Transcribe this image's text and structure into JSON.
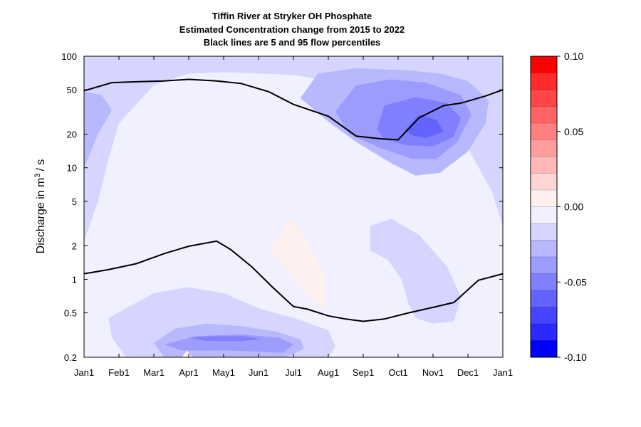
{
  "chart_data": {
    "type": "contour",
    "title_lines": [
      "Tiffin River at Stryker OH  Phosphate",
      "Estimated Concentration change from 2015 to 2022",
      "Black lines are 5 and 95 flow percentiles"
    ],
    "ylabel": "Discharge in m",
    "ylabel_sup": "3",
    "ylabel_suffix": "/ s",
    "y_scale": "log",
    "ylim": [
      0.2,
      100
    ],
    "y_ticks": [
      100,
      50,
      20,
      10,
      5,
      2,
      1,
      0.5,
      0.2
    ],
    "y_tick_labels": [
      "100",
      "50",
      "20",
      "10",
      "5",
      "2",
      "1",
      "0.5",
      "0.2"
    ],
    "x_ticks": [
      0,
      1,
      2,
      3,
      4,
      5,
      6,
      7,
      8,
      9,
      10,
      11,
      12
    ],
    "x_tick_labels": [
      "Jan1",
      "Feb1",
      "Mar1",
      "Apr1",
      "May1",
      "Jun1",
      "Jul1",
      "Aug1",
      "Sep1",
      "Oct1",
      "Nov1",
      "Dec1",
      "Jan1"
    ],
    "colorbar": {
      "range": [
        -0.1,
        0.1
      ],
      "ticks": [
        0.1,
        0.05,
        0.0,
        -0.05,
        -0.1
      ],
      "tick_labels": [
        "0.10",
        "0.05",
        "0.00",
        "-0.05",
        "-0.10"
      ],
      "colors_top_to_bottom": [
        "#ff0000",
        "#ff2a2a",
        "#ff4545",
        "#ff6363",
        "#ff8080",
        "#ff9c9c",
        "#ffb8b8",
        "#ffd5d5",
        "#fff0f0",
        "#f0f0ff",
        "#d5d5ff",
        "#b8b8ff",
        "#9c9cff",
        "#8080ff",
        "#6363ff",
        "#4545ff",
        "#2a2aff",
        "#0000ff"
      ]
    },
    "contour_regions": [
      {
        "level": -0.01,
        "color": "#d5d5ff",
        "points": [
          [
            0,
            2.2
          ],
          [
            0.4,
            5
          ],
          [
            0.7,
            12
          ],
          [
            1,
            25
          ],
          [
            2,
            55
          ],
          [
            3,
            70
          ],
          [
            4,
            72
          ],
          [
            5,
            70
          ],
          [
            6,
            68
          ],
          [
            7,
            60
          ],
          [
            8,
            45
          ],
          [
            8.8,
            35
          ],
          [
            9.5,
            30
          ],
          [
            10.3,
            22
          ],
          [
            11,
            15
          ],
          [
            11.7,
            6
          ],
          [
            12,
            3
          ],
          [
            12,
            100
          ],
          [
            0,
            100
          ]
        ]
      },
      {
        "level": -0.01,
        "color": "#d5d5ff",
        "points": [
          [
            0.7,
            0.45
          ],
          [
            1.2,
            0.55
          ],
          [
            2,
            0.75
          ],
          [
            3,
            0.85
          ],
          [
            4,
            0.75
          ],
          [
            5,
            0.55
          ],
          [
            6,
            0.45
          ],
          [
            7,
            0.35
          ],
          [
            7.2,
            0.25
          ],
          [
            7,
            0.2
          ],
          [
            1.2,
            0.2
          ],
          [
            0.8,
            0.3
          ]
        ]
      },
      {
        "level": -0.01,
        "color": "#d5d5ff",
        "points": [
          [
            8.2,
            1.8
          ],
          [
            8.7,
            1.5
          ],
          [
            9.1,
            1
          ],
          [
            9.3,
            0.6
          ],
          [
            9.5,
            0.45
          ],
          [
            10,
            0.4
          ],
          [
            10.6,
            0.42
          ],
          [
            10.8,
            0.7
          ],
          [
            10.4,
            1.3
          ],
          [
            9.6,
            2.5
          ],
          [
            8.8,
            3.5
          ],
          [
            8.2,
            3
          ]
        ]
      },
      {
        "level": -0.02,
        "color": "#b8b8ff",
        "points": [
          [
            0,
            10
          ],
          [
            0.4,
            20
          ],
          [
            0.8,
            33
          ],
          [
            0.5,
            45
          ],
          [
            0,
            48
          ]
        ]
      },
      {
        "level": -0.02,
        "color": "#b8b8ff",
        "points": [
          [
            6.2,
            42
          ],
          [
            6.7,
            70
          ],
          [
            7.8,
            78
          ],
          [
            9.2,
            75
          ],
          [
            10.2,
            70
          ],
          [
            11,
            60
          ],
          [
            11.6,
            40
          ],
          [
            11.5,
            25
          ],
          [
            11,
            14
          ],
          [
            10.2,
            9
          ],
          [
            9.5,
            8.5
          ],
          [
            8.8,
            11
          ],
          [
            7.8,
            17
          ],
          [
            7,
            26
          ]
        ]
      },
      {
        "level": -0.02,
        "color": "#b8b8ff",
        "points": [
          [
            2,
            0.27
          ],
          [
            2.6,
            0.36
          ],
          [
            3.5,
            0.4
          ],
          [
            4.5,
            0.38
          ],
          [
            5.5,
            0.34
          ],
          [
            6.2,
            0.29
          ],
          [
            6.3,
            0.24
          ],
          [
            5.8,
            0.2
          ],
          [
            2.3,
            0.2
          ]
        ]
      },
      {
        "level": -0.03,
        "color": "#9c9cff",
        "points": [
          [
            7.2,
            32
          ],
          [
            7.8,
            55
          ],
          [
            8.8,
            62
          ],
          [
            9.8,
            58
          ],
          [
            10.8,
            45
          ],
          [
            11.1,
            30
          ],
          [
            10.7,
            17
          ],
          [
            10.1,
            12
          ],
          [
            9.4,
            12
          ],
          [
            8.5,
            15
          ],
          [
            7.6,
            20
          ]
        ]
      },
      {
        "level": -0.03,
        "color": "#9c9cff",
        "points": [
          [
            2.3,
            0.26
          ],
          [
            3.2,
            0.31
          ],
          [
            4.5,
            0.32
          ],
          [
            5.6,
            0.3
          ],
          [
            6,
            0.26
          ],
          [
            5.7,
            0.22
          ],
          [
            4.2,
            0.23
          ],
          [
            2.8,
            0.23
          ]
        ]
      },
      {
        "level": -0.04,
        "color": "#8080ff",
        "points": [
          [
            8.4,
            22
          ],
          [
            8.6,
            36
          ],
          [
            9.5,
            43
          ],
          [
            10.4,
            38
          ],
          [
            10.8,
            28
          ],
          [
            10.6,
            19
          ],
          [
            10,
            15.5
          ],
          [
            9.2,
            16
          ],
          [
            8.6,
            18
          ]
        ]
      },
      {
        "level": -0.04,
        "color": "#8080ff",
        "points": [
          [
            3,
            0.3
          ],
          [
            3.8,
            0.31
          ],
          [
            4.6,
            0.31
          ],
          [
            5.1,
            0.29
          ],
          [
            4.5,
            0.28
          ],
          [
            3.5,
            0.28
          ]
        ]
      },
      {
        "level": -0.05,
        "color": "#6363ff",
        "points": [
          [
            9.2,
            22
          ],
          [
            9.6,
            30
          ],
          [
            10.1,
            27
          ],
          [
            10.3,
            21
          ],
          [
            9.8,
            18.5
          ],
          [
            9.4,
            19.5
          ]
        ]
      },
      {
        "level": 0.005,
        "color": "#fff0f0",
        "points": [
          [
            5.3,
            1.8
          ],
          [
            5.9,
            3.6
          ],
          [
            6.3,
            2.5
          ],
          [
            6.9,
            1.1
          ],
          [
            6.9,
            0.52
          ],
          [
            6.3,
            0.8
          ],
          [
            5.7,
            1.3
          ]
        ]
      },
      {
        "level": 0.005,
        "color": "#fff0f0",
        "points": [
          [
            2.8,
            0.2
          ],
          [
            3.1,
            0.2
          ],
          [
            2.95,
            0.23
          ]
        ]
      }
    ],
    "series": [
      {
        "name": "",
        "color": "#000000",
        "x": [
          0,
          0.8,
          1.5,
          2.3,
          3,
          3.8,
          4.5,
          5.3,
          6,
          7,
          7.8,
          8.5,
          9,
          9.6,
          10.3,
          10.8,
          11.5,
          12
        ],
        "y": [
          49,
          58,
          59,
          60,
          62,
          60,
          57,
          48,
          37,
          29,
          19.2,
          18.2,
          17.8,
          28,
          36,
          38,
          44,
          50
        ]
      },
      {
        "name": "",
        "color": "#000000",
        "x": [
          0,
          0.7,
          1.5,
          2.3,
          3,
          3.8,
          4.2,
          4.8,
          5.4,
          6,
          6.4,
          7,
          7.5,
          8,
          8.6,
          9.3,
          10,
          10.6,
          11.3,
          12
        ],
        "y": [
          1.12,
          1.22,
          1.38,
          1.7,
          1.98,
          2.2,
          1.85,
          1.3,
          0.85,
          0.57,
          0.54,
          0.47,
          0.44,
          0.42,
          0.44,
          0.5,
          0.56,
          0.62,
          0.98,
          1.12
        ]
      }
    ]
  }
}
